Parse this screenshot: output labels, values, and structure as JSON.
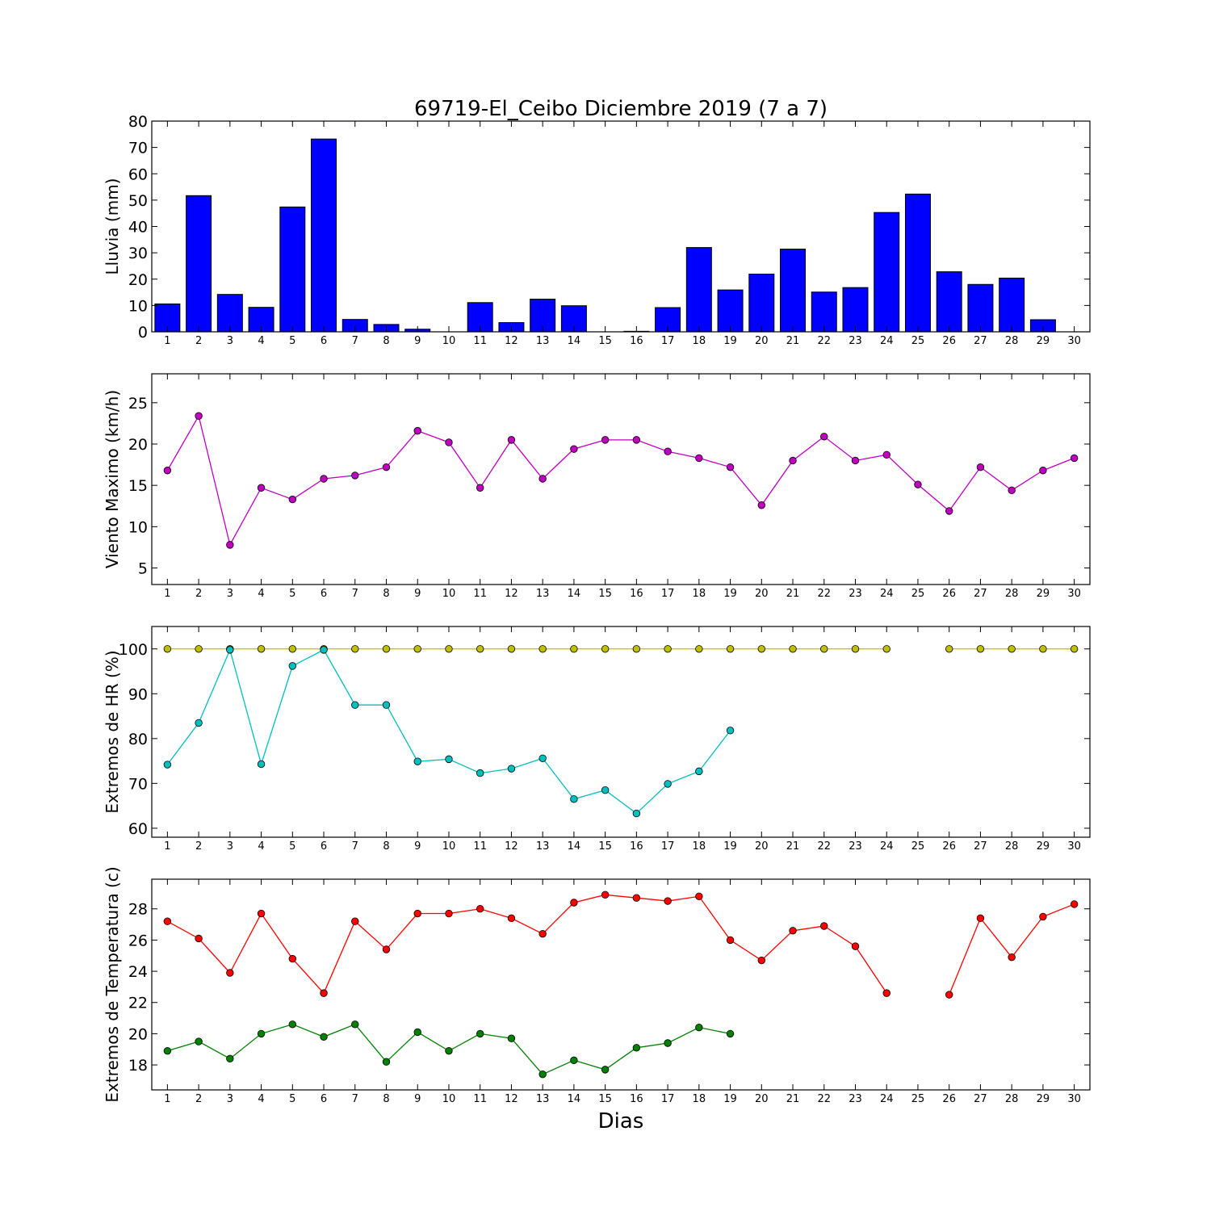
{
  "title": "69719-El_Ceibo Diciembre 2019  (7 a 7)",
  "chart_data": [
    {
      "type": "bar",
      "ylabel": "Lluvia (mm)",
      "xlabel": "",
      "x": [
        1,
        2,
        3,
        4,
        5,
        6,
        7,
        8,
        9,
        10,
        11,
        12,
        13,
        14,
        15,
        16,
        17,
        18,
        19,
        20,
        21,
        22,
        23,
        24,
        25,
        26,
        27,
        28,
        29,
        30
      ],
      "ylim": [
        0,
        80
      ],
      "yticks": [
        0,
        10,
        20,
        30,
        40,
        50,
        60,
        70,
        80
      ],
      "series": [
        {
          "color": "#0000ff",
          "values": [
            10.6,
            51.7,
            14.2,
            9.3,
            47.4,
            73.2,
            4.7,
            2.8,
            1.0,
            0.0,
            11.1,
            3.5,
            12.4,
            9.9,
            0.0,
            0.2,
            9.2,
            32.0,
            15.9,
            21.9,
            31.4,
            15.1,
            16.8,
            45.3,
            52.3,
            22.8,
            18.0,
            20.4,
            4.6,
            null
          ]
        }
      ]
    },
    {
      "type": "line",
      "ylabel": "Viento Maximo (km/h)",
      "xlabel": "",
      "x": [
        1,
        2,
        3,
        4,
        5,
        6,
        7,
        8,
        9,
        10,
        11,
        12,
        13,
        14,
        15,
        16,
        17,
        18,
        19,
        20,
        21,
        22,
        23,
        24,
        25,
        26,
        27,
        28,
        29,
        30
      ],
      "ylim": [
        3,
        28.5
      ],
      "yticks": [
        5,
        10,
        15,
        20,
        25
      ],
      "series": [
        {
          "color": "#bf00bf",
          "values": [
            16.8,
            23.4,
            7.8,
            14.7,
            13.3,
            15.8,
            16.2,
            17.2,
            21.6,
            20.2,
            14.7,
            20.5,
            15.8,
            19.4,
            20.5,
            20.5,
            19.1,
            18.3,
            17.2,
            12.6,
            18.0,
            20.9,
            18.0,
            18.7,
            15.1,
            11.9,
            17.2,
            14.4,
            16.8,
            18.3
          ]
        }
      ]
    },
    {
      "type": "line",
      "ylabel": "Extremos de HR (%)",
      "xlabel": "",
      "x": [
        1,
        2,
        3,
        4,
        5,
        6,
        7,
        8,
        9,
        10,
        11,
        12,
        13,
        14,
        15,
        16,
        17,
        18,
        19,
        20,
        21,
        22,
        23,
        24,
        25,
        26,
        27,
        28,
        29,
        30
      ],
      "ylim": [
        58,
        105
      ],
      "yticks": [
        60,
        70,
        80,
        90,
        100
      ],
      "series": [
        {
          "color": "#bfbf00",
          "values": [
            100,
            100,
            100,
            100,
            100,
            100,
            100,
            100,
            100,
            100,
            100,
            100,
            100,
            100,
            100,
            100,
            100,
            100,
            100,
            100,
            100,
            100,
            100,
            100,
            null,
            100,
            100,
            100,
            100,
            100
          ]
        },
        {
          "color": "#00bfbf",
          "values": [
            74.2,
            83.5,
            99.8,
            74.3,
            96.2,
            99.8,
            87.5,
            87.5,
            74.9,
            75.4,
            72.3,
            73.3,
            75.6,
            66.5,
            68.5,
            63.3,
            69.9,
            72.7,
            81.8,
            null,
            null,
            null,
            null,
            null,
            null,
            null,
            null,
            null,
            null,
            null
          ]
        }
      ]
    },
    {
      "type": "line",
      "ylabel": "Extremos de Temperatura (c)",
      "xlabel": "Dias",
      "x": [
        1,
        2,
        3,
        4,
        5,
        6,
        7,
        8,
        9,
        10,
        11,
        12,
        13,
        14,
        15,
        16,
        17,
        18,
        19,
        20,
        21,
        22,
        23,
        24,
        25,
        26,
        27,
        28,
        29,
        30
      ],
      "ylim": [
        16.4,
        29.9
      ],
      "yticks": [
        18,
        20,
        22,
        24,
        26,
        28
      ],
      "series": [
        {
          "color": "#ff0000",
          "values": [
            27.2,
            26.1,
            23.9,
            27.7,
            24.8,
            22.6,
            27.2,
            25.4,
            27.7,
            27.7,
            28.0,
            27.4,
            26.4,
            28.4,
            28.9,
            28.7,
            28.5,
            28.8,
            26.0,
            24.7,
            26.6,
            26.9,
            25.6,
            22.6,
            null,
            22.5,
            27.4,
            24.9,
            27.5,
            28.3
          ]
        },
        {
          "color": "#008000",
          "values": [
            18.9,
            19.5,
            18.4,
            20.0,
            20.6,
            19.8,
            20.6,
            18.2,
            20.1,
            18.9,
            20.0,
            19.7,
            17.4,
            18.3,
            17.7,
            19.1,
            19.4,
            20.4,
            20.0,
            null,
            null,
            null,
            null,
            null,
            null,
            null,
            null,
            null,
            null,
            null
          ]
        }
      ]
    }
  ]
}
